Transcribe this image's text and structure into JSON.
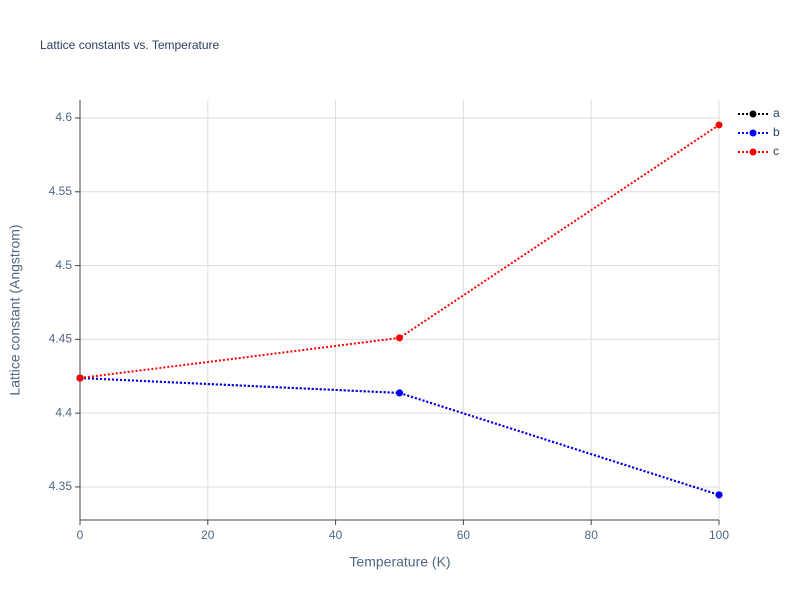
{
  "chart_data": {
    "type": "line",
    "title": "Lattice constants vs. Temperature",
    "x_label": "Temperature (K)",
    "y_label": "Lattice constant (Angstrom)",
    "x": [
      0,
      50,
      100
    ],
    "series": [
      {
        "name": "a",
        "color": "#000000",
        "values": [
          4.4238,
          4.4137,
          4.3446
        ]
      },
      {
        "name": "b",
        "color": "#0000ff",
        "values": [
          4.4238,
          4.4137,
          4.3446
        ]
      },
      {
        "name": "c",
        "color": "#ff0000",
        "values": [
          4.4238,
          4.451,
          4.5953
        ]
      }
    ],
    "xlim": [
      0,
      100
    ],
    "xticks": [
      0,
      20,
      40,
      60,
      80,
      100
    ],
    "ylim": [
      4.3276,
      4.6122
    ],
    "yticks": [
      4.35,
      4.4,
      4.45,
      4.5,
      4.55,
      4.6
    ],
    "grid": true,
    "legend": "right",
    "line_style": "dotted"
  }
}
